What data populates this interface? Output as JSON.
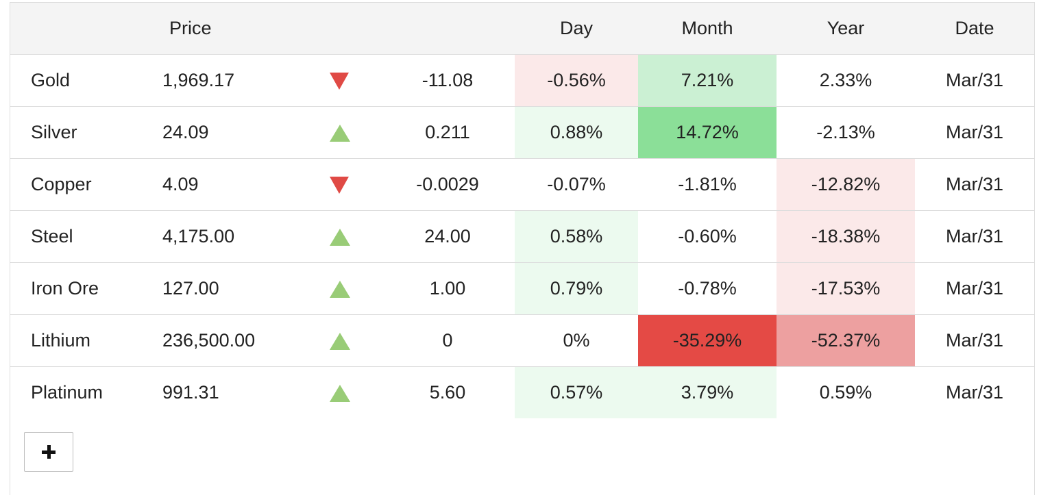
{
  "table": {
    "headers": {
      "name": "",
      "price": "Price",
      "arrow": "",
      "change": "",
      "day": "Day",
      "month": "Month",
      "year": "Year",
      "date": "Date"
    },
    "rows": [
      {
        "name": "Gold",
        "price": "1,969.17",
        "direction": "down",
        "change": "-11.08",
        "day": "-0.56%",
        "month": "7.21%",
        "year": "2.33%",
        "date": "Mar/31",
        "colors": {
          "day": "#fbe9e9",
          "month": "#cbf0d3",
          "year": "#ffffff"
        }
      },
      {
        "name": "Silver",
        "price": "24.09",
        "direction": "up",
        "change": "0.211",
        "day": "0.88%",
        "month": "14.72%",
        "year": "-2.13%",
        "date": "Mar/31",
        "colors": {
          "day": "#ecfaef",
          "month": "#8bdf98",
          "year": "#ffffff"
        }
      },
      {
        "name": "Copper",
        "price": "4.09",
        "direction": "down",
        "change": "-0.0029",
        "day": "-0.07%",
        "month": "-1.81%",
        "year": "-12.82%",
        "date": "Mar/31",
        "colors": {
          "day": "#ffffff",
          "month": "#ffffff",
          "year": "#fbe9e9"
        }
      },
      {
        "name": "Steel",
        "price": "4,175.00",
        "direction": "up",
        "change": "24.00",
        "day": "0.58%",
        "month": "-0.60%",
        "year": "-18.38%",
        "date": "Mar/31",
        "colors": {
          "day": "#ecfaef",
          "month": "#ffffff",
          "year": "#fbe9e9"
        }
      },
      {
        "name": "Iron Ore",
        "price": "127.00",
        "direction": "up",
        "change": "1.00",
        "day": "0.79%",
        "month": "-0.78%",
        "year": "-17.53%",
        "date": "Mar/31",
        "colors": {
          "day": "#ecfaef",
          "month": "#ffffff",
          "year": "#fbe9e9"
        }
      },
      {
        "name": "Lithium",
        "price": "236,500.00",
        "direction": "up",
        "change": "0",
        "day": "0%",
        "month": "-35.29%",
        "year": "-52.37%",
        "date": "Mar/31",
        "colors": {
          "day": "#ffffff",
          "month": "#e44a45",
          "year": "#eda0a0"
        }
      },
      {
        "name": "Platinum",
        "price": "991.31",
        "direction": "up",
        "change": "5.60",
        "day": "0.57%",
        "month": "3.79%",
        "year": "0.59%",
        "date": "Mar/31",
        "colors": {
          "day": "#ecfaef",
          "month": "#ecfaef",
          "year": "#ffffff"
        }
      }
    ]
  },
  "colors": {
    "up_arrow": "#99cc77",
    "down_arrow": "#e04a45",
    "header_bg": "#f4f4f4"
  },
  "add_button": {
    "icon": "plus-icon"
  }
}
